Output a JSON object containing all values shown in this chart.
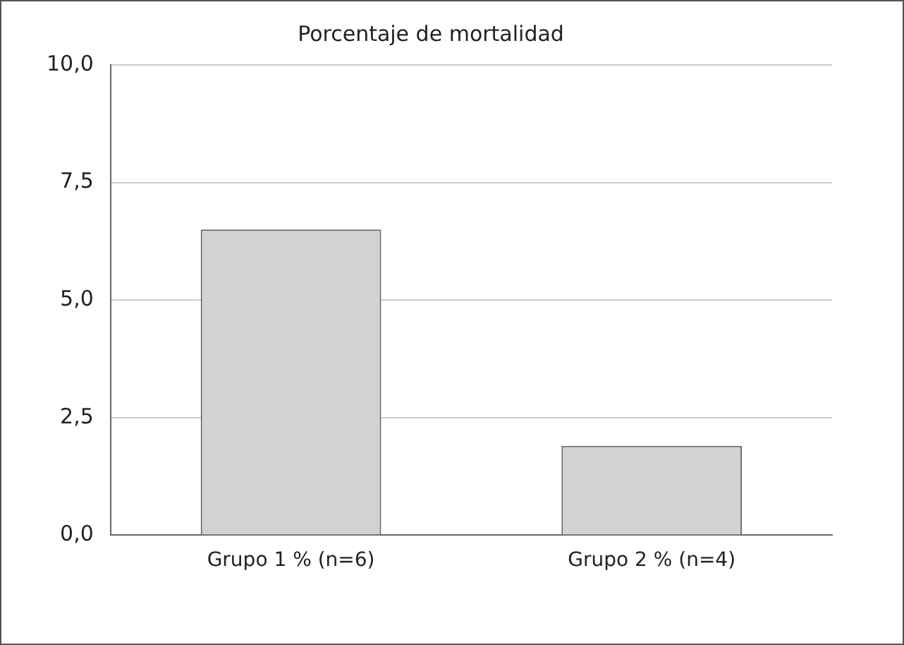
{
  "chart_data": {
    "type": "bar",
    "title": "Porcentaje de mortalidad",
    "categories": [
      "Grupo 1 % (n=6)",
      "Grupo 2 % (n=4)"
    ],
    "values": [
      6.5,
      1.9
    ],
    "color": "#d1d2d4",
    "ylim": [
      0,
      10
    ],
    "yticks": [
      {
        "value": 0,
        "label": "0,0"
      },
      {
        "value": 2.5,
        "label": "2,5"
      },
      {
        "value": 5,
        "label": "5,0"
      },
      {
        "value": 7.5,
        "label": "7,5"
      },
      {
        "value": 10,
        "label": "10,0"
      }
    ],
    "grid": "y",
    "legend": false
  }
}
